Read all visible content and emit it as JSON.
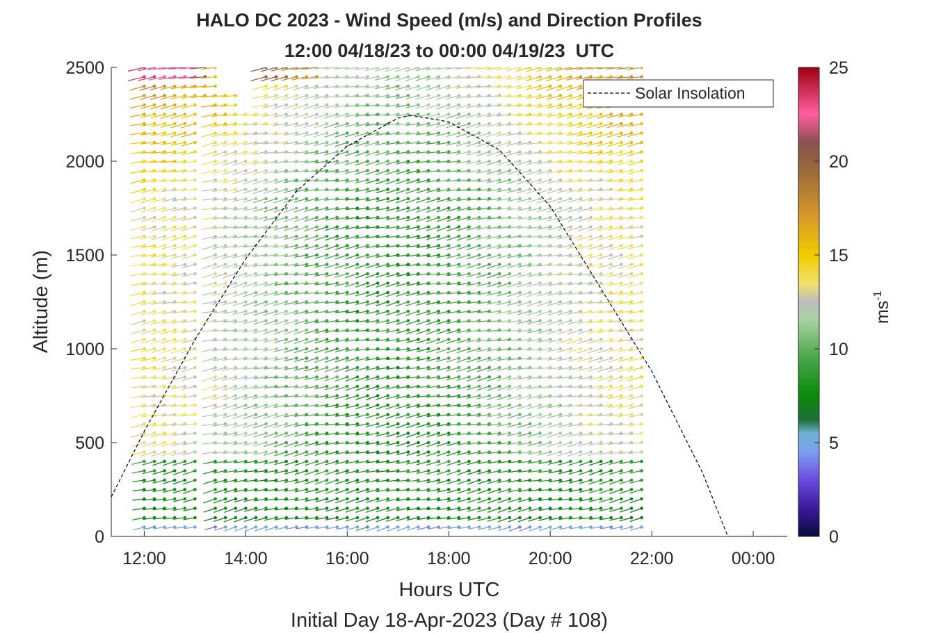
{
  "chart_data": {
    "type": "wind-barb-profile",
    "title": "HALO DC 2023 - Wind Speed (m/s) and Direction Profiles",
    "subtitle": "12:00 04/18/23 to 00:00 04/19/23  UTC",
    "xlabel": "Hours UTC",
    "xlabel2": "Initial Day 18-Apr-2023 (Day # 108)",
    "ylabel": "Altitude (m)",
    "x_ticks": [
      "12:00",
      "14:00",
      "16:00",
      "18:00",
      "20:00",
      "22:00",
      "00:00"
    ],
    "x_tick_hours": [
      12,
      14,
      16,
      18,
      20,
      22,
      24
    ],
    "xlim_hours": [
      11.35,
      24.67
    ],
    "y_ticks": [
      "0",
      "500",
      "1000",
      "1500",
      "2000",
      "2500"
    ],
    "y_tick_values": [
      0,
      500,
      1000,
      1500,
      2000,
      2500
    ],
    "ylim": [
      0,
      2500
    ],
    "legend": {
      "label": "Solar Insolation",
      "position": "top-right"
    },
    "colorbar": {
      "label": "ms",
      "label_superscript": "-1",
      "ticks": [
        "0",
        "5",
        "10",
        "15",
        "20",
        "25"
      ],
      "tick_values": [
        0,
        5,
        10,
        15,
        20,
        25
      ],
      "range": [
        0,
        25
      ],
      "stops": [
        {
          "v": 0,
          "c": "#0a0a3c"
        },
        {
          "v": 1.5,
          "c": "#3a1a9a"
        },
        {
          "v": 3,
          "c": "#6a4ae0"
        },
        {
          "v": 4.5,
          "c": "#7aa0f0"
        },
        {
          "v": 5.5,
          "c": "#6fb0d0"
        },
        {
          "v": 6.2,
          "c": "#1d6e3a"
        },
        {
          "v": 7.5,
          "c": "#0a8a0a"
        },
        {
          "v": 9.5,
          "c": "#4aa64a"
        },
        {
          "v": 11.5,
          "c": "#a6d2a0"
        },
        {
          "v": 12.5,
          "c": "#bdbdbd"
        },
        {
          "v": 13.5,
          "c": "#f2e26a"
        },
        {
          "v": 15,
          "c": "#f0cc00"
        },
        {
          "v": 17,
          "c": "#d89a28"
        },
        {
          "v": 19.5,
          "c": "#9a6a3a"
        },
        {
          "v": 21,
          "c": "#8a5050"
        },
        {
          "v": 22.5,
          "c": "#ff5fa0"
        },
        {
          "v": 25,
          "c": "#a00010"
        }
      ]
    },
    "wind_profile": {
      "start_hour": 12.0,
      "end_hour": 21.8,
      "step_hours": 0.2,
      "altitude_step_m": 50,
      "max_altitude_m": 2500,
      "gap_hours_below_2350m": [
        [
          13.15,
          13.4
        ]
      ],
      "top_gaps": [
        {
          "hours": [
            13.95,
            14.35
          ],
          "above_m": 2250
        },
        {
          "hours": [
            13.4,
            13.95
          ],
          "above_m": 2350
        }
      ],
      "speed_model": "approximate speed field (m/s) by hour and altitude"
    },
    "solar_insolation": {
      "hours": [
        11.35,
        12.0,
        13.0,
        14.0,
        15.0,
        16.0,
        17.0,
        17.25,
        18.0,
        19.0,
        20.0,
        21.0,
        22.0,
        23.0,
        23.5,
        24.67
      ],
      "values_m_axis": [
        210,
        560,
        1050,
        1480,
        1840,
        2080,
        2230,
        2245,
        2210,
        2060,
        1760,
        1320,
        880,
        340,
        0,
        0
      ]
    }
  }
}
